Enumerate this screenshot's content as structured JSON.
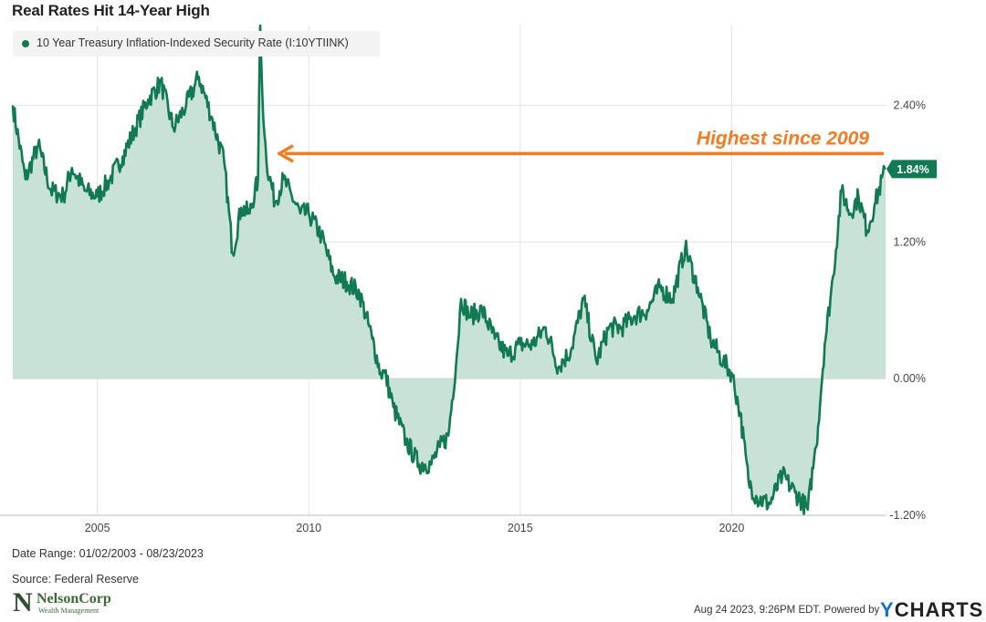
{
  "chart_data": {
    "type": "area",
    "title": "Real Rates Hit 14-Year High",
    "legend": {
      "label": "10 Year Treasury Inflation-Indexed Security Rate (I:10YTIINK)",
      "placement": "top-left"
    },
    "x_ticks": [
      "2005",
      "2010",
      "2015",
      "2020"
    ],
    "y_ticks": [
      "2.40%",
      "1.20%",
      "0.00%",
      "-1.20%"
    ],
    "xlim": [
      "2003-01-02",
      "2023-08-23"
    ],
    "ylim": [
      -1.2,
      3.1
    ],
    "grid": true,
    "series": [
      {
        "color": "#117a52",
        "fill": "#c8e2d8",
        "x": [
          2003.0,
          2003.3,
          2003.6,
          2003.9,
          2004.2,
          2004.4,
          2004.7,
          2005.0,
          2005.3,
          2005.6,
          2005.9,
          2006.2,
          2006.5,
          2006.8,
          2007.1,
          2007.4,
          2007.7,
          2008.0,
          2008.2,
          2008.4,
          2008.6,
          2008.8,
          2008.85,
          2008.9,
          2009.0,
          2009.2,
          2009.4,
          2009.6,
          2009.8,
          2010.0,
          2010.3,
          2010.6,
          2010.9,
          2011.2,
          2011.5,
          2011.7,
          2011.8,
          2012.0,
          2012.3,
          2012.6,
          2012.9,
          2013.1,
          2013.3,
          2013.5,
          2013.6,
          2013.8,
          2014.1,
          2014.4,
          2014.7,
          2015.0,
          2015.3,
          2015.6,
          2015.9,
          2016.2,
          2016.5,
          2016.8,
          2017.1,
          2017.4,
          2017.7,
          2018.0,
          2018.3,
          2018.6,
          2018.9,
          2019.2,
          2019.5,
          2019.8,
          2020.0,
          2020.2,
          2020.4,
          2020.6,
          2020.9,
          2021.2,
          2021.5,
          2021.8,
          2021.95,
          2022.0,
          2022.2,
          2022.4,
          2022.6,
          2022.8,
          2023.0,
          2023.2,
          2023.4,
          2023.64
        ],
        "y": [
          2.4,
          1.75,
          2.05,
          1.65,
          1.6,
          1.85,
          1.65,
          1.6,
          1.75,
          1.95,
          2.2,
          2.45,
          2.6,
          2.2,
          2.4,
          2.65,
          2.3,
          1.9,
          1.1,
          1.5,
          1.45,
          1.75,
          3.1,
          2.5,
          1.9,
          1.55,
          1.75,
          1.6,
          1.45,
          1.45,
          1.25,
          0.9,
          0.85,
          0.75,
          0.35,
          0.05,
          0.05,
          -0.25,
          -0.55,
          -0.75,
          -0.75,
          -0.6,
          -0.5,
          0.2,
          0.7,
          0.55,
          0.6,
          0.35,
          0.2,
          0.3,
          0.3,
          0.45,
          0.1,
          0.25,
          0.7,
          0.15,
          0.45,
          0.45,
          0.55,
          0.6,
          0.8,
          0.7,
          1.15,
          0.8,
          0.35,
          0.15,
          0.05,
          -0.3,
          -0.9,
          -1.05,
          -1.1,
          -0.85,
          -1.0,
          -1.15,
          -0.7,
          -0.6,
          0.3,
          0.9,
          1.65,
          1.45,
          1.6,
          1.3,
          1.55,
          1.84
        ]
      }
    ],
    "last_value_label": "1.84%",
    "annotation": {
      "text": "Highest since 2009",
      "color": "#f47b20"
    },
    "footer": {
      "date_range": "Date Range: 01/02/2003 - 08/23/2023",
      "source": "Source: Federal Reserve",
      "timestamp": "Aug 24 2023, 9:26PM EDT.  Powered by",
      "brand_y": "Y",
      "brand_rest": "CHARTS",
      "logo_name": "NelsonCorp",
      "logo_sub": "Wealth Management"
    }
  }
}
